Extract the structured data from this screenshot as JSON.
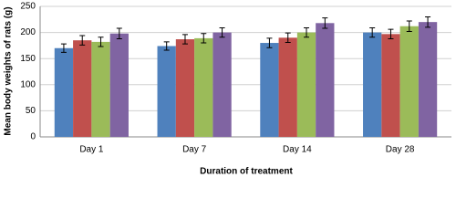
{
  "chart_data": {
    "type": "bar",
    "x_label": "Duration of treatment",
    "y_label": "Mean body weights of rats (g)",
    "categories": [
      "Day 1",
      "Day 7",
      "Day 14",
      "Day 28"
    ],
    "series": [
      {
        "color": "#4f81bd",
        "values": [
          170,
          174,
          180,
          200
        ],
        "errors": [
          8,
          8,
          9,
          9
        ]
      },
      {
        "color": "#c0504d",
        "values": [
          185,
          187,
          190,
          197
        ],
        "errors": [
          9,
          9,
          9,
          9
        ]
      },
      {
        "color": "#9bbb59",
        "values": [
          182,
          189,
          200,
          212
        ],
        "errors": [
          9,
          9,
          9,
          10
        ]
      },
      {
        "color": "#8064a2",
        "values": [
          198,
          200,
          218,
          220
        ],
        "errors": [
          10,
          9,
          10,
          10
        ]
      }
    ],
    "ylim": [
      0,
      250
    ],
    "yticks": [
      0,
      50,
      100,
      150,
      200,
      250
    ],
    "grid": true
  }
}
